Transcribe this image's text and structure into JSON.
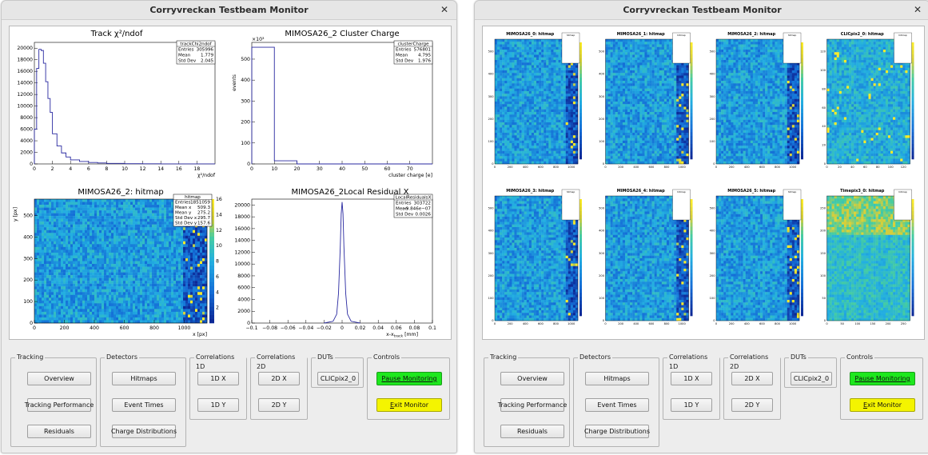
{
  "windows": [
    {
      "title": "Corryvreckan Testbeam Monitor",
      "canvas": {
        "plots": [
          {
            "title": "Track χ²/ndof",
            "stats_name": "trackChi2ndof",
            "stats": [
              [
                "Entries",
                "305996"
              ],
              [
                "Mean",
                "1.779"
              ],
              [
                "Std Dev",
                "2.045"
              ]
            ],
            "xlabel": "χ²/ndof",
            "xticks": [
              "0",
              "2",
              "4",
              "6",
              "8",
              "10",
              "12",
              "14",
              "16",
              "18"
            ],
            "yticks": [
              "0",
              "2000",
              "4000",
              "6000",
              "8000",
              "10000",
              "12000",
              "14000",
              "16000",
              "18000",
              "20000"
            ]
          },
          {
            "title": "MIMOSA26_2 Cluster Charge",
            "stats_name": "clusterCharge",
            "stats": [
              [
                "Entries",
                "576801"
              ],
              [
                "Mean",
                "4.795"
              ],
              [
                "Std Dev",
                "1.976"
              ]
            ],
            "xlabel": "cluster charge [e]",
            "ylabel": "events",
            "exponent": "×10³",
            "xticks": [
              "0",
              "10",
              "20",
              "30",
              "40",
              "50",
              "60",
              "70"
            ],
            "yticks": [
              "0",
              "100",
              "200",
              "300",
              "400",
              "500"
            ]
          },
          {
            "title": "MIMOSA26_2: hitmap",
            "stats_name": "hitmap",
            "stats": [
              [
                "Entries",
                "1851059"
              ],
              [
                "Mean x",
                "509.3"
              ],
              [
                "Mean y",
                "275.2"
              ],
              [
                "Std Dev x",
                "295.7"
              ],
              [
                "Std Dev y",
                "157.6"
              ]
            ],
            "xlabel": "x [px]",
            "ylabel": "y [px]",
            "xticks": [
              "0",
              "200",
              "400",
              "600",
              "800",
              "1000"
            ],
            "yticks": [
              "0",
              "100",
              "200",
              "300",
              "400",
              "500"
            ],
            "zticks": [
              "2",
              "4",
              "6",
              "8",
              "10",
              "12",
              "14",
              "16"
            ]
          },
          {
            "title": "MIMOSA26_2Local Residual X",
            "stats_name": "LocalResidualsX",
            "stats": [
              [
                "Entries",
                "303722"
              ],
              [
                "Mean",
                "−9.846e−07"
              ],
              [
                "Std Dev",
                "0.0026"
              ]
            ],
            "xlabel": "x-x",
            "xlabel_sub": "track",
            "xlabel_unit": " [mm]",
            "xticks": [
              "−0.1",
              "−0.08",
              "−0.06",
              "−0.04",
              "−0.02",
              "0",
              "0.02",
              "0.04",
              "0.06",
              "0.08",
              "0.1"
            ],
            "yticks": [
              "0",
              "2000",
              "4000",
              "6000",
              "8000",
              "10000",
              "12000",
              "14000",
              "16000",
              "18000",
              "20000"
            ]
          }
        ]
      }
    },
    {
      "title": "Corryvreckan Testbeam Monitor",
      "canvas": {
        "plots": [
          {
            "title": "MIMOSA26_0: hitmap"
          },
          {
            "title": "MIMOSA26_1: hitmap"
          },
          {
            "title": "MIMOSA26_2: hitmap"
          },
          {
            "title": "CLICpix2_0: hitmap"
          },
          {
            "title": "MIMOSA26_3: hitmap"
          },
          {
            "title": "MIMOSA26_4: hitmap"
          },
          {
            "title": "MIMOSA26_5: hitmap"
          },
          {
            "title": "Timepix3_0: hitmap"
          }
        ],
        "stats_name": "hitmap"
      }
    }
  ],
  "groups": {
    "tracking": {
      "label": "Tracking",
      "buttons": [
        "Overview",
        "Tracking Performance",
        "Residuals"
      ]
    },
    "detectors": {
      "label": "Detectors",
      "buttons": [
        "Hitmaps",
        "Event Times",
        "Charge Distributions"
      ]
    },
    "corr1d": {
      "label": "Correlations 1D",
      "buttons": [
        "1D X",
        "1D Y"
      ]
    },
    "corr2d": {
      "label": "Correlations 2D",
      "buttons": [
        "2D X",
        "2D Y"
      ]
    },
    "duts": {
      "label": "DUTs",
      "buttons": [
        "CLICpix2_0"
      ]
    },
    "controls": {
      "label": "Controls",
      "pause_first": "P",
      "pause_rest": "ause Monitoring",
      "exit_first": "E",
      "exit_rest": "xit Monitor"
    }
  },
  "chart_data": [
    {
      "type": "histogram",
      "title": "Track χ²/ndof",
      "xlabel": "χ²/ndof",
      "xlim": [
        0,
        20
      ],
      "ylim": [
        0,
        21000
      ],
      "x": [
        0.25,
        0.5,
        0.75,
        1.0,
        1.25,
        1.5,
        1.75,
        2.0,
        2.5,
        3.0,
        3.5,
        4.0,
        5.0,
        6.0,
        7.0,
        8.0,
        10.0,
        12.0,
        14.0,
        16.0,
        18.0,
        20.0
      ],
      "values": [
        6000,
        16500,
        19800,
        19600,
        17400,
        14200,
        11300,
        8900,
        5200,
        3100,
        1900,
        1200,
        700,
        420,
        250,
        170,
        90,
        50,
        30,
        15,
        8,
        4
      ]
    },
    {
      "type": "histogram",
      "title": "MIMOSA26_2 Cluster Charge",
      "xlabel": "cluster charge [e]",
      "ylabel": "events",
      "xlim": [
        0,
        80
      ],
      "ylim": [
        0,
        580000
      ],
      "bins": [
        [
          0,
          10,
          557000
        ],
        [
          10,
          20,
          15000
        ],
        [
          20,
          80,
          0
        ]
      ]
    },
    {
      "type": "heatmap",
      "title": "MIMOSA26_2: hitmap",
      "xlabel": "x [px]",
      "ylabel": "y [px]",
      "xlim": [
        0,
        1152
      ],
      "ylim": [
        0,
        576
      ],
      "zlim": [
        0,
        16
      ]
    },
    {
      "type": "histogram",
      "title": "MIMOSA26_2Local Residual X",
      "xlim": [
        -0.1,
        0.1
      ],
      "ylim": [
        0,
        21000
      ],
      "x": [
        -0.02,
        -0.01,
        -0.006,
        -0.004,
        -0.002,
        -0.001,
        0,
        0.001,
        0.002,
        0.004,
        0.006,
        0.01,
        0.02
      ],
      "values": [
        0,
        300,
        1500,
        5000,
        13000,
        18500,
        20500,
        18500,
        13000,
        5000,
        1500,
        300,
        0
      ]
    }
  ]
}
